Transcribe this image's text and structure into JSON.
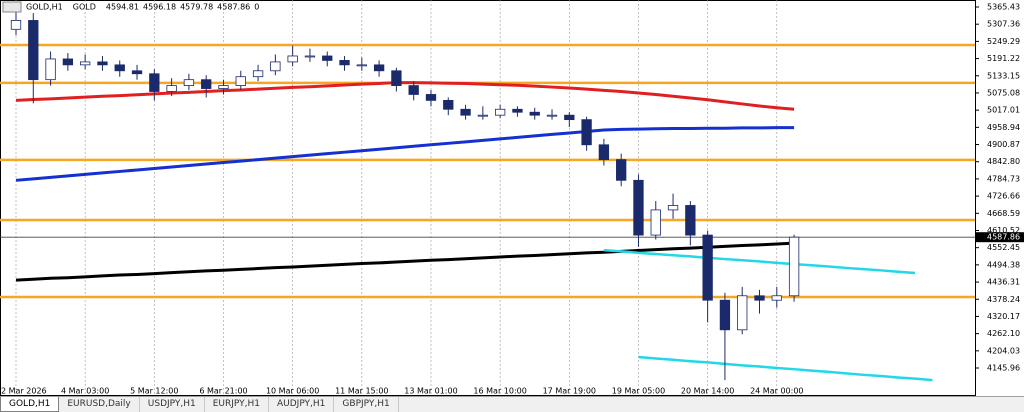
{
  "chart_data": {
    "type": "candlestick",
    "header": {
      "symbol": "GOLD,H1",
      "name": "GOLD",
      "values": [
        4594.81,
        4596.18,
        4579.78,
        4587.86,
        0
      ]
    },
    "categories": [
      "2 Mar 2026",
      null,
      null,
      null,
      "4 Mar 03:00",
      null,
      null,
      null,
      "5 Mar 12:00",
      null,
      null,
      null,
      "6 Mar 21:00",
      null,
      null,
      null,
      "10 Mar 06:00",
      null,
      null,
      null,
      "11 Mar 15:00",
      null,
      null,
      null,
      "13 Mar 01:00",
      null,
      null,
      null,
      "16 Mar 10:00",
      null,
      null,
      null,
      "17 Mar 19:00",
      null,
      null,
      null,
      "19 Mar 05:00",
      null,
      null,
      null,
      "20 Mar 14:00",
      null,
      null,
      null,
      "24 Mar 00:00",
      null,
      null,
      null,
      null,
      null,
      null,
      null,
      null,
      null,
      null,
      null
    ],
    "open": [
      5290,
      5320,
      5120,
      5190,
      5170,
      5180,
      5170,
      5150,
      5140,
      5080,
      5100,
      5120,
      5090,
      5100,
      5130,
      5150,
      5180,
      5200,
      5200,
      5185,
      5170,
      5170,
      5150,
      5100,
      5070,
      5050,
      5020,
      5000,
      5000,
      5020,
      5010,
      5000,
      5000,
      4985,
      4900,
      4850,
      4780,
      4595,
      4680,
      4695,
      4595,
      4375,
      4275,
      4390,
      4375,
      4390,
      null,
      null,
      null,
      null,
      null,
      null,
      null,
      null,
      null,
      null
    ],
    "high": [
      5360,
      5345,
      5215,
      5210,
      5205,
      5200,
      5185,
      5170,
      5155,
      5125,
      5140,
      5135,
      5120,
      5150,
      5170,
      5205,
      5235,
      5225,
      5215,
      5200,
      5195,
      5185,
      5160,
      5115,
      5085,
      5060,
      5035,
      5030,
      5035,
      5030,
      5025,
      5020,
      5010,
      4995,
      4920,
      4870,
      4800,
      4710,
      4735,
      4710,
      4610,
      4400,
      4420,
      4410,
      4420,
      4596.18,
      null,
      null,
      null,
      null,
      null,
      null,
      null,
      null,
      null,
      null
    ],
    "low": [
      5270,
      5040,
      5100,
      5150,
      5155,
      5150,
      5130,
      5120,
      5050,
      5065,
      5085,
      5060,
      5070,
      5085,
      5115,
      5135,
      5165,
      5180,
      5165,
      5150,
      5150,
      5130,
      5080,
      5050,
      5030,
      5000,
      4985,
      4985,
      4990,
      4995,
      4985,
      4985,
      4960,
      4880,
      4830,
      4760,
      4555,
      4580,
      4650,
      4560,
      4300,
      4105,
      4260,
      4330,
      4350,
      4370,
      null,
      null,
      null,
      null,
      null,
      null,
      null,
      null,
      null,
      null
    ],
    "close": [
      5320,
      5120,
      5190,
      5170,
      5180,
      5170,
      5150,
      5140,
      5080,
      5100,
      5120,
      5090,
      5100,
      5130,
      5150,
      5180,
      5200,
      5200,
      5185,
      5170,
      5170,
      5150,
      5100,
      5070,
      5050,
      5020,
      5000,
      5000,
      5020,
      5010,
      5000,
      5000,
      4985,
      4900,
      4850,
      4780,
      4595,
      4680,
      4695,
      4595,
      4375,
      4275,
      4390,
      4375,
      4390,
      4587.86,
      null,
      null,
      null,
      null,
      null,
      null,
      null,
      null,
      null,
      null
    ],
    "up_color": "#ffffff",
    "down_color": "#1b2a6b",
    "wick_color": "#1b2a6b",
    "lines": [
      {
        "color": "#e02020",
        "width": 3,
        "values": [
          5050,
          5053,
          5055,
          5058,
          5061,
          5064,
          5066,
          5069,
          5072,
          5075,
          5077,
          5080,
          5083,
          5085,
          5088,
          5091,
          5094,
          5096,
          5099,
          5102,
          5105,
          5107,
          5110,
          5110,
          5109,
          5108,
          5107,
          5105,
          5103,
          5101,
          5098,
          5095,
          5092,
          5088,
          5084,
          5080,
          5075,
          5070,
          5064,
          5058,
          5052,
          5045,
          5038,
          5031,
          5025,
          5020,
          null,
          null,
          null,
          null,
          null,
          null,
          null,
          null,
          null,
          null
        ]
      },
      {
        "color": "#1530d0",
        "width": 3,
        "values": [
          4780,
          4785,
          4790,
          4795,
          4800,
          4805,
          4810,
          4815,
          4820,
          4825,
          4830,
          4835,
          4840,
          4845,
          4850,
          4855,
          4860,
          4865,
          4870,
          4875,
          4880,
          4885,
          4890,
          4895,
          4900,
          4905,
          4910,
          4915,
          4920,
          4925,
          4930,
          4935,
          4940,
          4945,
          4950,
          4952,
          4953,
          4954,
          4955,
          4955,
          4956,
          4956,
          4957,
          4957,
          4958,
          4958,
          null,
          null,
          null,
          null,
          null,
          null,
          null,
          null,
          null,
          null
        ]
      },
      {
        "color": "#000000",
        "width": 3,
        "values": [
          4443,
          4446,
          4449,
          4451,
          4454,
          4457,
          4460,
          4462,
          4465,
          4468,
          4471,
          4474,
          4476,
          4479,
          4482,
          4485,
          4487,
          4490,
          4493,
          4496,
          4499,
          4501,
          4504,
          4507,
          4510,
          4512,
          4515,
          4518,
          4521,
          4524,
          4526,
          4529,
          4532,
          4535,
          4537,
          4540,
          4543,
          4546,
          4549,
          4551,
          4554,
          4557,
          4560,
          4562,
          4565,
          4568,
          null,
          null,
          null,
          null,
          null,
          null,
          null,
          null,
          null,
          null
        ]
      },
      {
        "color": "#22d8e8",
        "width": 2.5,
        "values": [
          null,
          null,
          null,
          null,
          null,
          null,
          null,
          null,
          null,
          null,
          null,
          null,
          null,
          null,
          null,
          null,
          null,
          null,
          null,
          null,
          null,
          null,
          null,
          null,
          null,
          null,
          null,
          null,
          null,
          null,
          null,
          null,
          null,
          null,
          4544,
          4540,
          4535,
          4531,
          4527,
          4523,
          4518,
          4514,
          4510,
          4506,
          4501,
          4497,
          4493,
          4489,
          4484,
          4480,
          4476,
          4471,
          4467,
          null,
          null,
          null
        ]
      },
      {
        "color": "#22d8e8",
        "width": 2.5,
        "values": [
          null,
          null,
          null,
          null,
          null,
          null,
          null,
          null,
          null,
          null,
          null,
          null,
          null,
          null,
          null,
          null,
          null,
          null,
          null,
          null,
          null,
          null,
          null,
          null,
          null,
          null,
          null,
          null,
          null,
          null,
          null,
          null,
          null,
          null,
          null,
          null,
          4183,
          4178,
          4174,
          4169,
          4165,
          4160,
          4155,
          4151,
          4146,
          4142,
          4137,
          4133,
          4128,
          4123,
          4119,
          4114,
          4110,
          4105,
          null,
          null
        ]
      }
    ],
    "levels": [
      5237,
      5109,
      4849,
      4646,
      4386
    ],
    "level_color": "#f5a623",
    "current_price": 4587.86,
    "ylim": [
      4054.8,
      5389.1
    ],
    "yticks": [
      5365.43,
      5307.36,
      5249.29,
      5191.22,
      5133.15,
      5075.08,
      5017.01,
      4958.94,
      4900.87,
      {
        "value": 4842.8,
        "label": "4842.80"
      },
      4784.73,
      4726.66,
      4668.59,
      4610.52,
      4552.45,
      4494.38,
      4436.31,
      4378.24,
      4320.17,
      {
        "value": 4262.1,
        "label": "4262.10"
      },
      4204.03,
      4145.96
    ],
    "grid": true
  },
  "tabs": [
    "GOLD,H1",
    "EURUSD,Daily",
    "USDJPY,H1",
    "EURJPY,H1",
    "AUDJPY,H1",
    "GBPJPY,H1"
  ]
}
